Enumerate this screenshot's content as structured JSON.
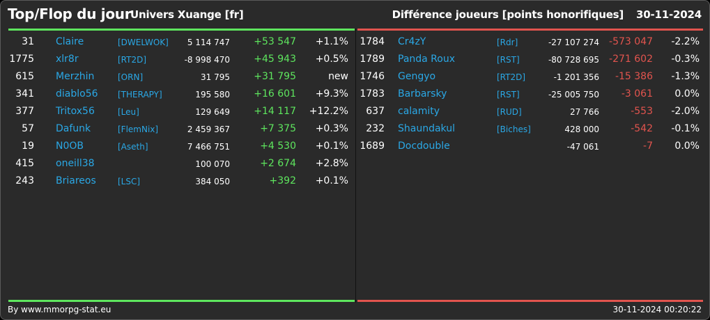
{
  "header": {
    "title": "Top/Flop du jour",
    "subtitle": "Univers Xuange [fr]",
    "metric": "Différence joueurs [points honorifiques]",
    "date": "30-11-2024"
  },
  "colors": {
    "positive": "#5ee65e",
    "negative": "#e2544e",
    "link": "#2aa8e6"
  },
  "top": [
    {
      "rank": "31",
      "name": "Claire",
      "ally": "[DWELWOK]",
      "score": "5 114 747",
      "diff": "+53 547",
      "pct": "+1.1%"
    },
    {
      "rank": "1775",
      "name": "xlr8r",
      "ally": "[RT2D]",
      "score": "-8 998 470",
      "diff": "+45 943",
      "pct": "+0.5%"
    },
    {
      "rank": "615",
      "name": "Merzhin",
      "ally": "[ORN]",
      "score": "31 795",
      "diff": "+31 795",
      "pct": "new"
    },
    {
      "rank": "341",
      "name": "diablo56",
      "ally": "[THERAPY]",
      "score": "195 580",
      "diff": "+16 601",
      "pct": "+9.3%"
    },
    {
      "rank": "377",
      "name": "Tritox56",
      "ally": "[Leu]",
      "score": "129 649",
      "diff": "+14 117",
      "pct": "+12.2%"
    },
    {
      "rank": "57",
      "name": "Dafunk",
      "ally": "[FlemNix]",
      "score": "2 459 367",
      "diff": "+7 375",
      "pct": "+0.3%"
    },
    {
      "rank": "19",
      "name": "N0OB",
      "ally": "[Aseth]",
      "score": "7 466 751",
      "diff": "+4 530",
      "pct": "+0.1%"
    },
    {
      "rank": "415",
      "name": "oneill38",
      "ally": "",
      "score": "100 070",
      "diff": "+2 674",
      "pct": "+2.8%"
    },
    {
      "rank": "243",
      "name": "Briareos",
      "ally": "[LSC]",
      "score": "384 050",
      "diff": "+392",
      "pct": "+0.1%"
    }
  ],
  "flop": [
    {
      "rank": "1784",
      "name": "Cr4zY",
      "ally": "[Rdr]",
      "score": "-27 107 274",
      "diff": "-573 047",
      "pct": "-2.2%"
    },
    {
      "rank": "1789",
      "name": "Panda Roux",
      "ally": "[RST]",
      "score": "-80 728 695",
      "diff": "-271 602",
      "pct": "-0.3%"
    },
    {
      "rank": "1746",
      "name": "Gengyo",
      "ally": "[RT2D]",
      "score": "-1 201 356",
      "diff": "-15 386",
      "pct": "-1.3%"
    },
    {
      "rank": "1783",
      "name": "Barbarsky",
      "ally": "[RST]",
      "score": "-25 005 750",
      "diff": "-3 061",
      "pct": "0.0%"
    },
    {
      "rank": "637",
      "name": "calamity",
      "ally": "[RUD]",
      "score": "27 766",
      "diff": "-553",
      "pct": "-2.0%"
    },
    {
      "rank": "232",
      "name": "Shaundakul",
      "ally": "[Biches]",
      "score": "428 000",
      "diff": "-542",
      "pct": "-0.1%"
    },
    {
      "rank": "1689",
      "name": "Docdouble",
      "ally": "",
      "score": "-47 061",
      "diff": "-7",
      "pct": "0.0%"
    }
  ],
  "footer": {
    "source": "By www.mmorpg-stat.eu",
    "timestamp": "30-11-2024 00:20:22"
  }
}
